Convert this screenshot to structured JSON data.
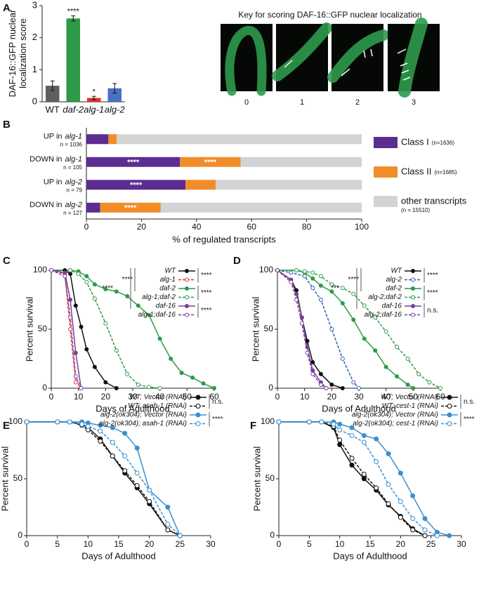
{
  "panel_labels": [
    "A",
    "B",
    "C",
    "D",
    "E",
    "F"
  ],
  "key": {
    "title": "Key for scoring DAF-16::GFP nuclear localization",
    "scores": [
      0,
      1,
      2,
      3
    ]
  },
  "chart_data": [
    {
      "type": "bar",
      "ylabel": "DAF-16::GFP nuclear localization score",
      "categories": [
        "WT",
        "daf-2",
        "alg-1",
        "alg-2"
      ],
      "values": [
        0.5,
        2.6,
        0.12,
        0.42
      ],
      "errors": [
        0.15,
        0.08,
        0.05,
        0.15
      ],
      "colors": [
        "#5f5f5f",
        "#2e9a47",
        "#e0302e",
        "#4a6fc4"
      ],
      "significance": [
        null,
        "****",
        "*",
        null
      ],
      "ylim": [
        0,
        3
      ],
      "yticks": [
        0,
        1,
        2,
        3
      ]
    },
    {
      "type": "hbar_stacked",
      "xlabel": "% of regulated transcripts",
      "categories": [
        {
          "label": "UP in",
          "gene": "alg-1",
          "n": "n = 1036"
        },
        {
          "label": "DOWN in",
          "gene": "alg-1",
          "n": "n = 105"
        },
        {
          "label": "UP in",
          "gene": "alg-2",
          "n": "n = 79"
        },
        {
          "label": "DOWN in",
          "gene": "alg-2",
          "n": "n = 127"
        }
      ],
      "series": [
        {
          "name": "Class I",
          "note": "(n=1636)",
          "color": "#5b2d90",
          "values": [
            8,
            34,
            36,
            5
          ],
          "significance": [
            null,
            "****",
            "****",
            null
          ]
        },
        {
          "name": "Class II",
          "note": "(n=1685)",
          "color": "#f28c28",
          "values": [
            3,
            22,
            11,
            22
          ],
          "significance": [
            null,
            "****",
            null,
            "****"
          ]
        },
        {
          "name": "other transcripts",
          "note": "(n = 15510)",
          "color": "#d3d3d3",
          "values": [
            89,
            44,
            53,
            73
          ],
          "significance": [
            null,
            null,
            null,
            null
          ]
        }
      ],
      "xlim": [
        0,
        100
      ],
      "xticks": [
        0,
        20,
        40,
        60,
        80,
        100
      ]
    },
    {
      "type": "line",
      "xlabel": "Days of Adulthood",
      "ylabel": "Percent survival",
      "xlim": [
        0,
        60
      ],
      "xticks": [
        0,
        10,
        20,
        30,
        40,
        50,
        60
      ],
      "ylim": [
        0,
        100
      ],
      "yticks": [
        0,
        50,
        100
      ],
      "series": [
        {
          "name": "WT",
          "color": "#111111",
          "linestyle": "solid",
          "marker": "filled",
          "x": [
            0,
            5,
            7,
            9,
            11,
            13,
            16,
            20,
            24
          ],
          "values": [
            100,
            100,
            97,
            70,
            52,
            33,
            18,
            5,
            0
          ]
        },
        {
          "name": "alg-1",
          "color": "#e0302e",
          "linestyle": "dashed",
          "marker": "open",
          "x": [
            0,
            5,
            7,
            9,
            11
          ],
          "values": [
            100,
            97,
            50,
            5,
            0
          ]
        },
        {
          "name": "daf-2",
          "color": "#2e9a47",
          "linestyle": "solid",
          "marker": "filled",
          "x": [
            0,
            7,
            10,
            13,
            16,
            20,
            24,
            28,
            32,
            36,
            40,
            44,
            48,
            52,
            56,
            60
          ],
          "values": [
            100,
            100,
            99,
            95,
            88,
            84,
            82,
            78,
            70,
            62,
            42,
            25,
            13,
            9,
            4,
            0
          ]
        },
        {
          "name": "alg-1;daf-2",
          "color": "#2e9a47",
          "linestyle": "dashed",
          "marker": "open",
          "x": [
            0,
            7,
            10,
            13,
            16,
            20,
            24,
            28,
            32,
            36,
            40
          ],
          "values": [
            100,
            100,
            97,
            90,
            76,
            55,
            32,
            12,
            3,
            1,
            0
          ]
        },
        {
          "name": "daf-16",
          "color": "#7b3f98",
          "linestyle": "solid",
          "marker": "filled",
          "x": [
            0,
            5,
            7,
            9,
            11
          ],
          "values": [
            100,
            98,
            75,
            30,
            0
          ]
        },
        {
          "name": "alg-1;daf-16",
          "color": "#7b3f98",
          "linestyle": "dashed",
          "marker": "open",
          "x": [
            0,
            5,
            7,
            9,
            11
          ],
          "values": [
            100,
            95,
            60,
            10,
            0
          ]
        }
      ],
      "pair_significance": [
        "****",
        "****",
        "****"
      ],
      "group_significance": [
        "****",
        "****"
      ]
    },
    {
      "type": "line",
      "xlabel": "Days of Adulthood",
      "ylabel": "Percent survival",
      "xlim": [
        0,
        60
      ],
      "xticks": [
        0,
        10,
        20,
        30,
        40,
        50,
        60
      ],
      "ylim": [
        0,
        100
      ],
      "yticks": [
        0,
        50,
        100
      ],
      "series": [
        {
          "name": "WT",
          "color": "#111111",
          "linestyle": "solid",
          "marker": "filled",
          "x": [
            0,
            5,
            7,
            9,
            11,
            13,
            16,
            20,
            24
          ],
          "values": [
            100,
            92,
            83,
            60,
            40,
            22,
            12,
            3,
            0
          ]
        },
        {
          "name": "alg-2",
          "color": "#2f5fb3",
          "linestyle": "dashed",
          "marker": "open",
          "x": [
            0,
            5,
            10,
            13,
            16,
            20,
            24,
            28,
            30
          ],
          "values": [
            100,
            98,
            95,
            85,
            75,
            50,
            25,
            5,
            0
          ]
        },
        {
          "name": "daf-2",
          "color": "#2e9a47",
          "linestyle": "solid",
          "marker": "filled",
          "x": [
            0,
            7,
            10,
            13,
            16,
            20,
            24,
            28,
            32,
            36,
            40,
            44,
            48,
            50
          ],
          "values": [
            100,
            100,
            98,
            93,
            87,
            82,
            72,
            58,
            42,
            32,
            18,
            10,
            3,
            0
          ]
        },
        {
          "name": "alg-2;daf-2",
          "color": "#2e9a47",
          "linestyle": "dashed",
          "marker": "open",
          "x": [
            0,
            7,
            10,
            13,
            16,
            20,
            24,
            28,
            32,
            36,
            40,
            44,
            48,
            52,
            56,
            60
          ],
          "values": [
            100,
            100,
            99,
            98,
            95,
            88,
            85,
            80,
            70,
            60,
            48,
            35,
            25,
            12,
            5,
            0
          ]
        },
        {
          "name": "daf-16",
          "color": "#7b3f98",
          "linestyle": "solid",
          "marker": "filled",
          "x": [
            0,
            5,
            7,
            9,
            11,
            13,
            16,
            18
          ],
          "values": [
            100,
            92,
            80,
            60,
            35,
            15,
            5,
            0
          ]
        },
        {
          "name": "alg-2;daf-16",
          "color": "#7b3f98",
          "linestyle": "dashed",
          "marker": "open",
          "x": [
            0,
            5,
            7,
            9,
            11,
            13,
            16,
            18
          ],
          "values": [
            100,
            90,
            75,
            55,
            30,
            12,
            3,
            0
          ]
        }
      ],
      "pair_significance": [
        "****",
        "****",
        "n.s."
      ],
      "group_significance": [
        "****",
        "***"
      ]
    },
    {
      "type": "line",
      "xlabel": "Days of Adulthood",
      "ylabel": "Percent survival",
      "xlim": [
        0,
        30
      ],
      "xticks": [
        0,
        5,
        10,
        15,
        20,
        25,
        30
      ],
      "ylim": [
        0,
        100
      ],
      "yticks": [
        0,
        50,
        100
      ],
      "series": [
        {
          "name": "WT; Vector (RNAi)",
          "color": "#111111",
          "linestyle": "solid",
          "marker": "filled",
          "x": [
            0,
            5,
            7,
            9,
            10,
            12,
            14,
            16,
            18,
            20,
            23,
            25
          ],
          "values": [
            100,
            100,
            100,
            98,
            95,
            85,
            70,
            55,
            42,
            28,
            5,
            0
          ]
        },
        {
          "name": "WT; asah-1 (RNAi)",
          "color": "#111111",
          "linestyle": "dashed",
          "marker": "open",
          "x": [
            0,
            5,
            7,
            9,
            10,
            12,
            14,
            16,
            18,
            20,
            23,
            25
          ],
          "values": [
            100,
            100,
            100,
            97,
            93,
            83,
            70,
            57,
            44,
            30,
            5,
            0
          ]
        },
        {
          "name": "alg-2(ok304); Vector (RNAi)",
          "color": "#3a8fd0",
          "linestyle": "solid",
          "marker": "filled",
          "x": [
            0,
            5,
            7,
            9,
            10,
            12,
            14,
            16,
            18,
            20,
            23,
            25
          ],
          "values": [
            100,
            100,
            100,
            100,
            99,
            97,
            95,
            90,
            77,
            40,
            25,
            0
          ]
        },
        {
          "name": "alg-2(ok304); asah-1 (RNAi)",
          "color": "#3a8fd0",
          "linestyle": "dashed",
          "marker": "open",
          "x": [
            0,
            5,
            7,
            9,
            10,
            12,
            14,
            16,
            18,
            20,
            23,
            25
          ],
          "values": [
            100,
            100,
            100,
            98,
            96,
            92,
            82,
            70,
            55,
            40,
            10,
            0
          ]
        }
      ],
      "pair_significance": [
        "n.s.",
        "****"
      ]
    },
    {
      "type": "line",
      "xlabel": "Days of Adulthood",
      "ylabel": "Percent survival",
      "xlim": [
        0,
        30
      ],
      "xticks": [
        0,
        5,
        10,
        15,
        20,
        25,
        30
      ],
      "ylim": [
        0,
        100
      ],
      "yticks": [
        0,
        50,
        100
      ],
      "series": [
        {
          "name": "WT; Vector (RNAi)",
          "color": "#111111",
          "linestyle": "solid",
          "marker": "filled",
          "x": [
            0,
            5,
            7,
            9,
            10,
            12,
            14,
            16,
            18,
            20,
            22,
            24
          ],
          "values": [
            100,
            100,
            100,
            95,
            80,
            62,
            50,
            40,
            27,
            17,
            6,
            0
          ]
        },
        {
          "name": "WT; cest-1 (RNAi)",
          "color": "#111111",
          "linestyle": "dashed",
          "marker": "open",
          "x": [
            0,
            5,
            7,
            9,
            10,
            12,
            14,
            16,
            18,
            20,
            22,
            24
          ],
          "values": [
            100,
            100,
            100,
            96,
            84,
            68,
            54,
            42,
            28,
            16,
            5,
            0
          ]
        },
        {
          "name": "alg-2(ok304); Vector (RNAi)",
          "color": "#3a8fd0",
          "linestyle": "solid",
          "marker": "filled",
          "x": [
            0,
            5,
            7,
            9,
            10,
            12,
            14,
            16,
            18,
            20,
            22,
            24,
            26,
            28
          ],
          "values": [
            100,
            100,
            100,
            100,
            98,
            95,
            88,
            85,
            72,
            55,
            35,
            15,
            3,
            0
          ]
        },
        {
          "name": "alg-2(ok304); cest-1 (RNAi)",
          "color": "#3a8fd0",
          "linestyle": "dashed",
          "marker": "open",
          "x": [
            0,
            5,
            7,
            9,
            10,
            12,
            14,
            16,
            18,
            20,
            22,
            24,
            26
          ],
          "values": [
            100,
            100,
            100,
            98,
            93,
            88,
            82,
            65,
            45,
            30,
            15,
            5,
            0
          ]
        }
      ],
      "pair_significance": [
        "n.s.",
        "****"
      ]
    }
  ]
}
